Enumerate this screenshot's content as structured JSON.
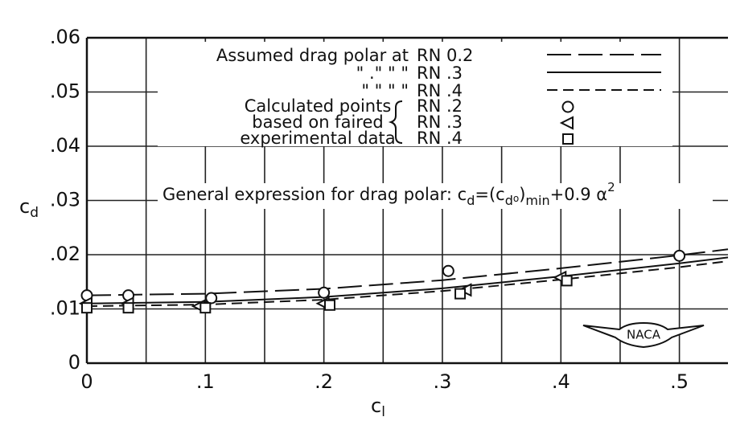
{
  "chart_data": {
    "type": "line",
    "xlabel": "c",
    "xlabel_sub": "l",
    "ylabel": "c",
    "ylabel_sub": "d",
    "xlim": [
      0,
      0.541
    ],
    "ylim": [
      0,
      0.06
    ],
    "xticks": [
      0,
      {
        "value": 0.1,
        "label": ".1"
      },
      {
        "value": 0.2,
        "label": ".2"
      },
      {
        "value": 0.3,
        "label": ".3"
      },
      {
        "value": 0.4,
        "label": ".4"
      },
      {
        "value": 0.5,
        "label": ".5"
      }
    ],
    "xgrid_extra": [
      0.05,
      0.15,
      0.25,
      0.35,
      0.45
    ],
    "yticks": [
      0,
      {
        "value": 0.01,
        "label": ".01"
      },
      {
        "value": 0.02,
        "label": ".02"
      },
      {
        "value": 0.03,
        "label": ".03"
      },
      {
        "value": 0.04,
        "label": ".04"
      },
      {
        "value": 0.05,
        "label": ".05"
      },
      {
        "value": 0.06,
        "label": ".06"
      }
    ],
    "grid": true,
    "x": [
      0,
      0.1,
      0.2,
      0.3,
      0.4,
      0.5,
      0.541
    ],
    "series": [
      {
        "name": "RN 0.2",
        "dash": "long",
        "color": "#111",
        "values": [
          0.0125,
          0.0128,
          0.0137,
          0.0153,
          0.0175,
          0.0199,
          0.021
        ]
      },
      {
        "name": "RN .3",
        "dash": "solid",
        "color": "#111",
        "values": [
          0.011,
          0.0113,
          0.0122,
          0.0138,
          0.016,
          0.0184,
          0.0195
        ]
      },
      {
        "name": "RN .4",
        "dash": "short",
        "color": "#111",
        "values": [
          0.0105,
          0.0108,
          0.0117,
          0.0133,
          0.0154,
          0.0177,
          0.0188
        ]
      }
    ],
    "points": [
      {
        "name": "RN .2",
        "marker": "circle",
        "x": [
          0,
          0.035,
          0.105,
          0.2,
          0.305,
          0.5
        ],
        "values": [
          0.0125,
          0.0125,
          0.012,
          0.013,
          0.017,
          0.0198
        ]
      },
      {
        "name": "RN .3",
        "marker": "triangle",
        "x": [
          0,
          0.035,
          0.095,
          0.2,
          0.32,
          0.4
        ],
        "values": [
          0.011,
          0.011,
          0.0105,
          0.011,
          0.0135,
          0.0158
        ]
      },
      {
        "name": "RN .4",
        "marker": "square",
        "x": [
          0,
          0.035,
          0.1,
          0.205,
          0.315,
          0.405
        ],
        "values": [
          0.0102,
          0.0102,
          0.0102,
          0.0107,
          0.0128,
          0.0152
        ]
      }
    ],
    "legend_line_texts": [
      "Assumed drag polar at",
      "\"        .\"       \"       \"",
      "\"         \"       \"       \""
    ],
    "legend_point_texts": [
      "Calculated points",
      "based on faired",
      "experimental data"
    ],
    "annotation": [
      {
        "text": "General expression for drag polar: c",
        "style": "normal"
      },
      {
        "text": "d",
        "style": "sub"
      },
      {
        "text": "=(c",
        "style": "normal"
      },
      {
        "text": "d",
        "style": "sub"
      },
      {
        "text": "o",
        "style": "sub2"
      },
      {
        "text": ")",
        "style": "normal"
      },
      {
        "text": "min",
        "style": "sub"
      },
      {
        "text": "+0.9 α",
        "style": "normal"
      },
      {
        "text": "2",
        "style": "sup"
      }
    ],
    "logo": "NACA"
  }
}
